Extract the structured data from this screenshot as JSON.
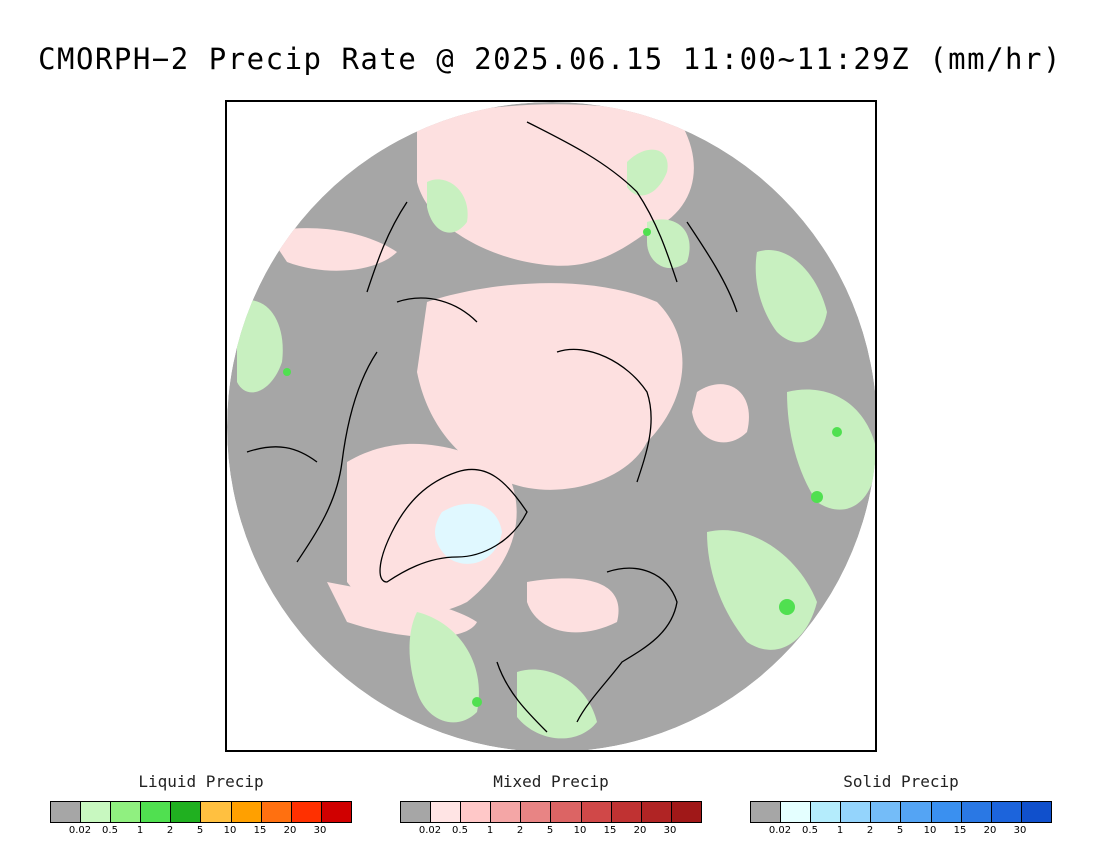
{
  "title": "CMORPH−2 Precip Rate @ 2025.06.15 11:00~11:29Z (mm/hr)",
  "map": {
    "background_color": "#a6a6a6",
    "projection": "polar stereographic (north pole)",
    "colors": {
      "coast": "#000000",
      "liquid_light": "#c8f0c0",
      "mixed_light": "#fde0e0",
      "solid_light": "#e0f8ff"
    }
  },
  "legends": [
    {
      "title": "Liquid Precip",
      "colors": [
        "#a6a6a6",
        "#c8f8c0",
        "#90f080",
        "#50e050",
        "#20b020",
        "#ffc040",
        "#ffa000",
        "#ff7010",
        "#ff3000",
        "#d00000"
      ],
      "ticks": [
        "0.02",
        "0.5",
        "1",
        "2",
        "5",
        "10",
        "15",
        "20",
        "30"
      ]
    },
    {
      "title": "Mixed Precip",
      "colors": [
        "#a6a6a6",
        "#ffe4e4",
        "#ffc8c8",
        "#f4a6a6",
        "#e88484",
        "#dc6464",
        "#d04848",
        "#c03232",
        "#b02424",
        "#a01818"
      ],
      "ticks": [
        "0.02",
        "0.5",
        "1",
        "2",
        "5",
        "10",
        "15",
        "20",
        "30"
      ]
    },
    {
      "title": "Solid Precip",
      "colors": [
        "#a6a6a6",
        "#e4ffff",
        "#b4ecfc",
        "#94d4fc",
        "#74bcf8",
        "#54a4f4",
        "#3a90f0",
        "#2a78e4",
        "#1c64dc",
        "#1050cc"
      ],
      "ticks": [
        "0.02",
        "0.5",
        "1",
        "2",
        "5",
        "10",
        "15",
        "20",
        "30"
      ]
    }
  ]
}
